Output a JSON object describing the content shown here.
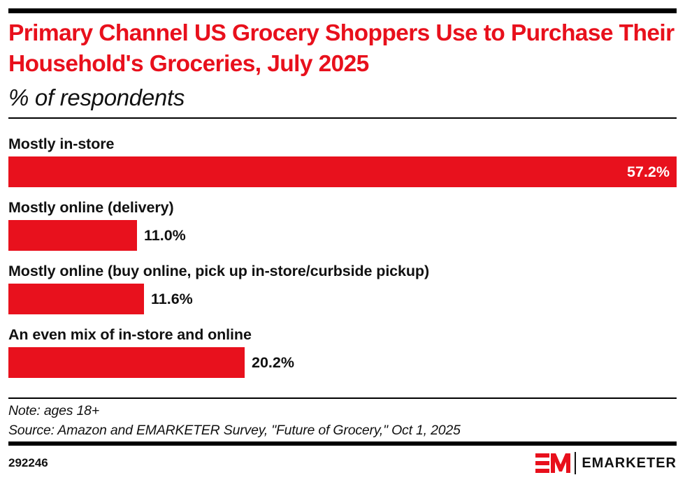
{
  "header": {
    "title": "Primary Channel US Grocery Shoppers Use to Purchase Their Household's Groceries, July 2025",
    "subtitle": "% of respondents"
  },
  "chart_data": {
    "type": "bar",
    "orientation": "horizontal",
    "title": "Primary Channel US Grocery Shoppers Use to Purchase Their Household's Groceries, July 2025",
    "subtitle": "% of respondents",
    "xlabel": "",
    "ylabel": "",
    "unit": "%",
    "grid": false,
    "categories": [
      "Mostly in-store",
      "Mostly online (delivery)",
      "Mostly online (buy online, pick up in-store/curbside pickup)",
      "An even mix of in-store and online"
    ],
    "values": [
      57.2,
      11.0,
      11.6,
      20.2
    ],
    "value_labels": [
      "57.2%",
      "11.0%",
      "11.6%",
      "20.2%"
    ],
    "bar_color": "#e8111d"
  },
  "footer": {
    "note": "Note: ages 18+",
    "source": "Source: Amazon and EMARKETER Survey, \"Future of Grocery,\" Oct 1, 2025",
    "chart_id": "292246",
    "brand": "EMARKETER",
    "logo_letters": "EM"
  },
  "colors": {
    "accent": "#e8101c",
    "text": "#111111"
  }
}
